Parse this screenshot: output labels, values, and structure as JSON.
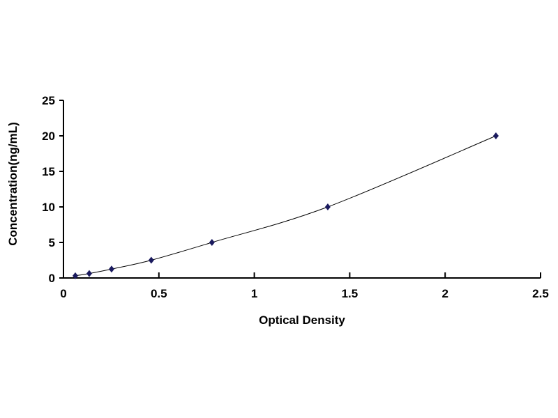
{
  "chart_data": {
    "type": "scatter",
    "title": "",
    "xlabel": "Optical Density",
    "ylabel": "Concentration(ng/mL)",
    "xlim": [
      0,
      2.5
    ],
    "ylim": [
      0,
      25
    ],
    "xticks": [
      "0",
      "0.5",
      "1",
      "1.5",
      "2",
      "2.5"
    ],
    "yticks": [
      "0",
      "5",
      "10",
      "15",
      "20",
      "25"
    ],
    "grid": false,
    "legend": "none",
    "marker": "diamond",
    "trendline": "smooth curve",
    "colors": {
      "marker": "#1a1a5e",
      "line": "#000000"
    },
    "series": [
      {
        "x": [
          0.062,
          0.135,
          0.252,
          0.46,
          0.778,
          1.385,
          2.266
        ],
        "y": [
          0.31,
          0.625,
          1.25,
          2.5,
          5,
          10,
          20
        ]
      }
    ]
  }
}
